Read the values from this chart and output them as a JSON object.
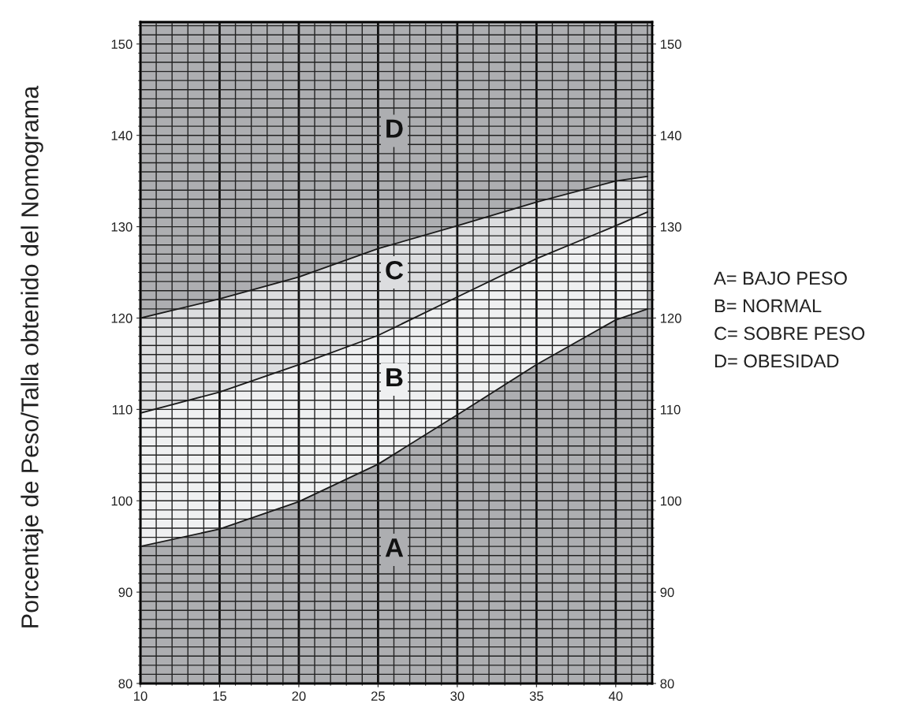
{
  "chart_data": {
    "type": "area",
    "ylabel": "Porcentaje de Peso/Talla obtenido del Nomograma",
    "x": [
      10,
      15,
      20,
      25,
      30,
      35,
      40,
      42
    ],
    "series": [
      {
        "color": "#dcdddf",
        "values": [
          120.0,
          122.1,
          124.5,
          127.6,
          130.1,
          132.7,
          135.0,
          135.5
        ]
      },
      {
        "color": "#eff0f1",
        "values": [
          109.6,
          111.9,
          114.9,
          118.1,
          122.3,
          126.5,
          130.1,
          131.6
        ]
      },
      {
        "color": "#adaeb1",
        "values": [
          95.0,
          96.9,
          99.9,
          104.0,
          109.4,
          114.9,
          119.8,
          121.0
        ]
      }
    ],
    "xlim": [
      10,
      42.3
    ],
    "xticks": [
      10,
      15,
      20,
      25,
      30,
      35,
      40
    ],
    "ylim": [
      80,
      152.4
    ],
    "yticks": [
      80,
      90,
      100,
      110,
      120,
      130,
      140,
      150
    ],
    "y2lim": [
      80,
      152.4
    ],
    "y2ticks": [
      80,
      90,
      100,
      110,
      120,
      130,
      140,
      150
    ],
    "grid": true,
    "annotations": [
      "D",
      "C",
      "B",
      "A",
      "A= BAJO PESO",
      "B= NORMAL",
      "C= SOBRE PESO",
      "D= OBESIDAD"
    ]
  }
}
